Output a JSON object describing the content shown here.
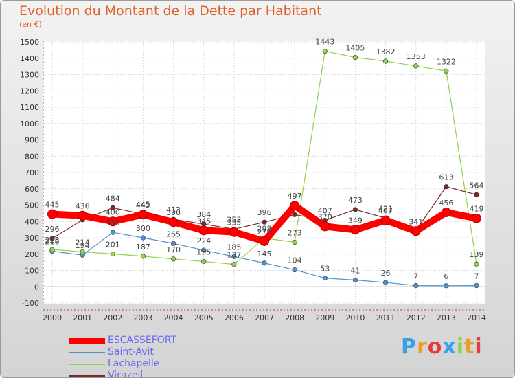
{
  "chart_data": {
    "type": "line",
    "title": "Evolution du Montant de la Dette par Habitant",
    "subtitle": "(en €)",
    "x": [
      "2000",
      "2001",
      "2002",
      "2003",
      "2004",
      "2005",
      "2006",
      "2007",
      "2008",
      "2009",
      "2010",
      "2011",
      "2012",
      "2013",
      "2014"
    ],
    "yticks": [
      "1500",
      "1400",
      "1300",
      "1200",
      "1100",
      "1000",
      "900",
      "800",
      "700",
      "600",
      "500",
      "400",
      "300",
      "200",
      "100",
      "0",
      "-100"
    ],
    "ylim": [
      -100,
      1500
    ],
    "grid": true,
    "legend_placement": "bottom-left",
    "series": [
      {
        "name": "ESCASSEFORT",
        "color": "#ff0000",
        "values": [
          445,
          436,
          400,
          442,
          396,
          345,
          335,
          279,
          497,
          370,
          349,
          407,
          341,
          456,
          419
        ],
        "labels": [
          "445",
          "436",
          "400",
          "442",
          "396",
          "345",
          "335",
          "279",
          "497",
          "370",
          "349",
          "407",
          "341",
          "456",
          "419"
        ]
      },
      {
        "name": "Saint-Avit",
        "color": "#4f92cf",
        "values": [
          218,
          194,
          333,
          300,
          265,
          224,
          185,
          145,
          104,
          53,
          41,
          26,
          7,
          6,
          7
        ],
        "labels": [
          "218",
          "194",
          "333",
          "300",
          "265",
          "224",
          "185",
          "145",
          "104",
          "53",
          "41",
          "26",
          "7",
          "6",
          "7"
        ]
      },
      {
        "name": "Lachapelle",
        "color": "#8fd34a",
        "values": [
          228,
          214,
          201,
          187,
          170,
          155,
          137,
          298,
          273,
          1443,
          1405,
          1382,
          1353,
          1322,
          139
        ],
        "labels": [
          "228",
          "214",
          "201",
          "187",
          "170",
          "155",
          "137",
          "298",
          "273",
          "1443",
          "1405",
          "1382",
          "1353",
          "1322",
          "139"
        ]
      },
      {
        "name": "Virazeil",
        "color": "#7a2a2a",
        "values": [
          296,
          410,
          484,
          445,
          413,
          384,
          353,
          396,
          442,
          407,
          473,
          421,
          345,
          613,
          564
        ],
        "labels": [
          "296",
          "",
          "484",
          "445",
          "413",
          "384",
          "353",
          "396",
          "",
          "407",
          "473",
          "421",
          "",
          "613",
          "564"
        ]
      }
    ]
  },
  "logo": {
    "letters": [
      {
        "ch": "P",
        "color": "#3aa0e8"
      },
      {
        "ch": "r",
        "color": "#e8a020"
      },
      {
        "ch": "o",
        "color": "#e83a3a"
      },
      {
        "ch": "x",
        "color": "#3aa0e8"
      },
      {
        "ch": "i",
        "color": "#8fd34a"
      },
      {
        "ch": "t",
        "color": "#e8a020"
      },
      {
        "ch": "i",
        "color": "#e83a3a"
      }
    ]
  }
}
